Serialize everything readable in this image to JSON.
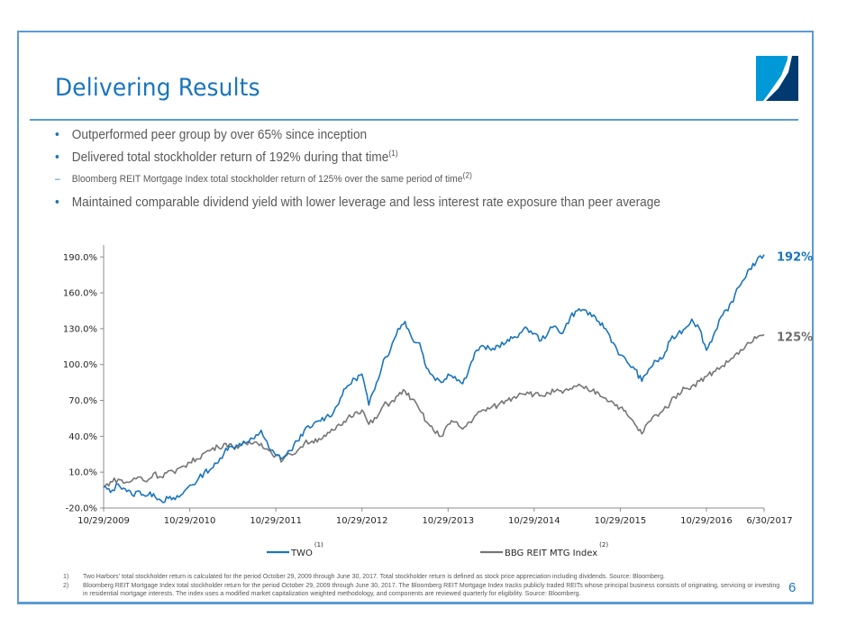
{
  "slide": {
    "title": "Delivering Results",
    "page_number": "6",
    "brand_colors": {
      "primary_blue": "#1a75bc",
      "frame_blue": "#5b9bd5",
      "logo_light": "#0099d8",
      "logo_dark": "#003a70",
      "index_gray": "#767676"
    }
  },
  "bullets": [
    {
      "level": 1,
      "text": "Outperformed peer group by over 65% since inception",
      "footnote": ""
    },
    {
      "level": 1,
      "text": "Delivered total stockholder return of 192% during that time",
      "footnote": "(1)"
    },
    {
      "level": 2,
      "text": "Bloomberg REIT Mortgage Index total stockholder return of 125% over the same period of time",
      "footnote": "(2)"
    },
    {
      "level": 1,
      "text": "Maintained comparable dividend yield with lower leverage and less interest rate exposure than peer average",
      "footnote": ""
    }
  ],
  "footnotes": [
    {
      "num": "1)",
      "text": "Two Harbors' total stockholder return is calculated for the period October 29, 2009 through June 30, 2017. Total stockholder return is defined as stock price appreciation including dividends. Source: Bloomberg."
    },
    {
      "num": "2)",
      "text": "Bloomberg REIT Mortgage Index total stockholder return for the period October 29, 2009 through June 30, 2017.  The Bloomberg REIT Mortgage Index tracks publicly traded REITs whose principal business consists of originating, servicing or investing in residential mortgage interests.  The index uses a modified market capitalization weighted methodology, and components are reviewed quarterly for eligibility.  Source: Bloomberg."
    }
  ],
  "chart_data": {
    "type": "line",
    "title": "",
    "xlabel": "",
    "ylabel": "",
    "x_tick_labels": [
      "10/29/2009",
      "10/29/2010",
      "10/29/2011",
      "10/29/2012",
      "10/29/2013",
      "10/29/2014",
      "10/29/2015",
      "10/29/2016",
      "6/30/2017"
    ],
    "x_range_years": [
      0,
      7.67
    ],
    "y_tick_labels": [
      "-20.0%",
      "10.0%",
      "40.0%",
      "70.0%",
      "100.0%",
      "130.0%",
      "160.0%",
      "190.0%"
    ],
    "ylim": [
      -20,
      200
    ],
    "grid": false,
    "legend_position": "bottom",
    "x_unit": "years since 10/29/2009",
    "x": [
      0,
      0.08,
      0.17,
      0.25,
      0.33,
      0.42,
      0.5,
      0.58,
      0.67,
      0.75,
      0.83,
      0.92,
      1.0,
      1.08,
      1.17,
      1.25,
      1.33,
      1.42,
      1.5,
      1.58,
      1.67,
      1.75,
      1.83,
      1.92,
      2.0,
      2.08,
      2.17,
      2.25,
      2.33,
      2.42,
      2.5,
      2.58,
      2.67,
      2.75,
      2.83,
      2.92,
      3.0,
      3.08,
      3.17,
      3.25,
      3.33,
      3.42,
      3.5,
      3.58,
      3.67,
      3.75,
      3.83,
      3.92,
      4.0,
      4.08,
      4.17,
      4.25,
      4.33,
      4.42,
      4.5,
      4.58,
      4.67,
      4.75,
      4.83,
      4.92,
      5.0,
      5.08,
      5.17,
      5.25,
      5.33,
      5.42,
      5.5,
      5.58,
      5.67,
      5.75,
      5.83,
      5.92,
      6.0,
      6.08,
      6.17,
      6.25,
      6.33,
      6.42,
      6.5,
      6.58,
      6.67,
      6.75,
      6.83,
      6.92,
      7.0,
      7.08,
      7.17,
      7.25,
      7.33,
      7.42,
      7.5,
      7.58,
      7.67
    ],
    "series": [
      {
        "name": "TWO",
        "footnote": "(1)",
        "color": "#1a75bc",
        "end_label": "192%",
        "values": [
          -2,
          -7,
          0,
          -4,
          -9,
          -6,
          -10,
          -8,
          -14,
          -12,
          -13,
          -8,
          -1,
          2,
          10,
          13,
          18,
          30,
          31,
          34,
          35,
          38,
          45,
          30,
          24,
          22,
          28,
          36,
          45,
          48,
          53,
          56,
          60,
          72,
          82,
          88,
          92,
          66,
          85,
          104,
          112,
          130,
          136,
          122,
          118,
          97,
          90,
          85,
          92,
          90,
          84,
          98,
          112,
          115,
          112,
          116,
          118,
          122,
          126,
          130,
          126,
          120,
          128,
          132,
          126,
          140,
          145,
          146,
          140,
          136,
          130,
          118,
          108,
          102,
          96,
          86,
          96,
          103,
          106,
          120,
          126,
          130,
          138,
          130,
          112,
          124,
          140,
          145,
          158,
          170,
          180,
          186,
          192
        ]
      },
      {
        "name": "BBG REIT MTG Index",
        "footnote": "(2)",
        "color": "#767676",
        "end_label": "125%",
        "values": [
          -3,
          2,
          4,
          1,
          3,
          6,
          2,
          9,
          6,
          11,
          9,
          15,
          18,
          21,
          26,
          29,
          31,
          34,
          31,
          32,
          33,
          35,
          34,
          28,
          24,
          20,
          25,
          28,
          34,
          36,
          38,
          40,
          45,
          49,
          55,
          60,
          62,
          50,
          55,
          66,
          68,
          74,
          78,
          71,
          62,
          52,
          45,
          40,
          50,
          52,
          46,
          52,
          58,
          62,
          64,
          66,
          70,
          72,
          76,
          77,
          75,
          74,
          76,
          78,
          76,
          80,
          82,
          80,
          78,
          76,
          72,
          68,
          64,
          58,
          50,
          42,
          52,
          58,
          62,
          68,
          76,
          80,
          82,
          86,
          90,
          94,
          98,
          102,
          108,
          112,
          118,
          122,
          125
        ]
      }
    ]
  }
}
